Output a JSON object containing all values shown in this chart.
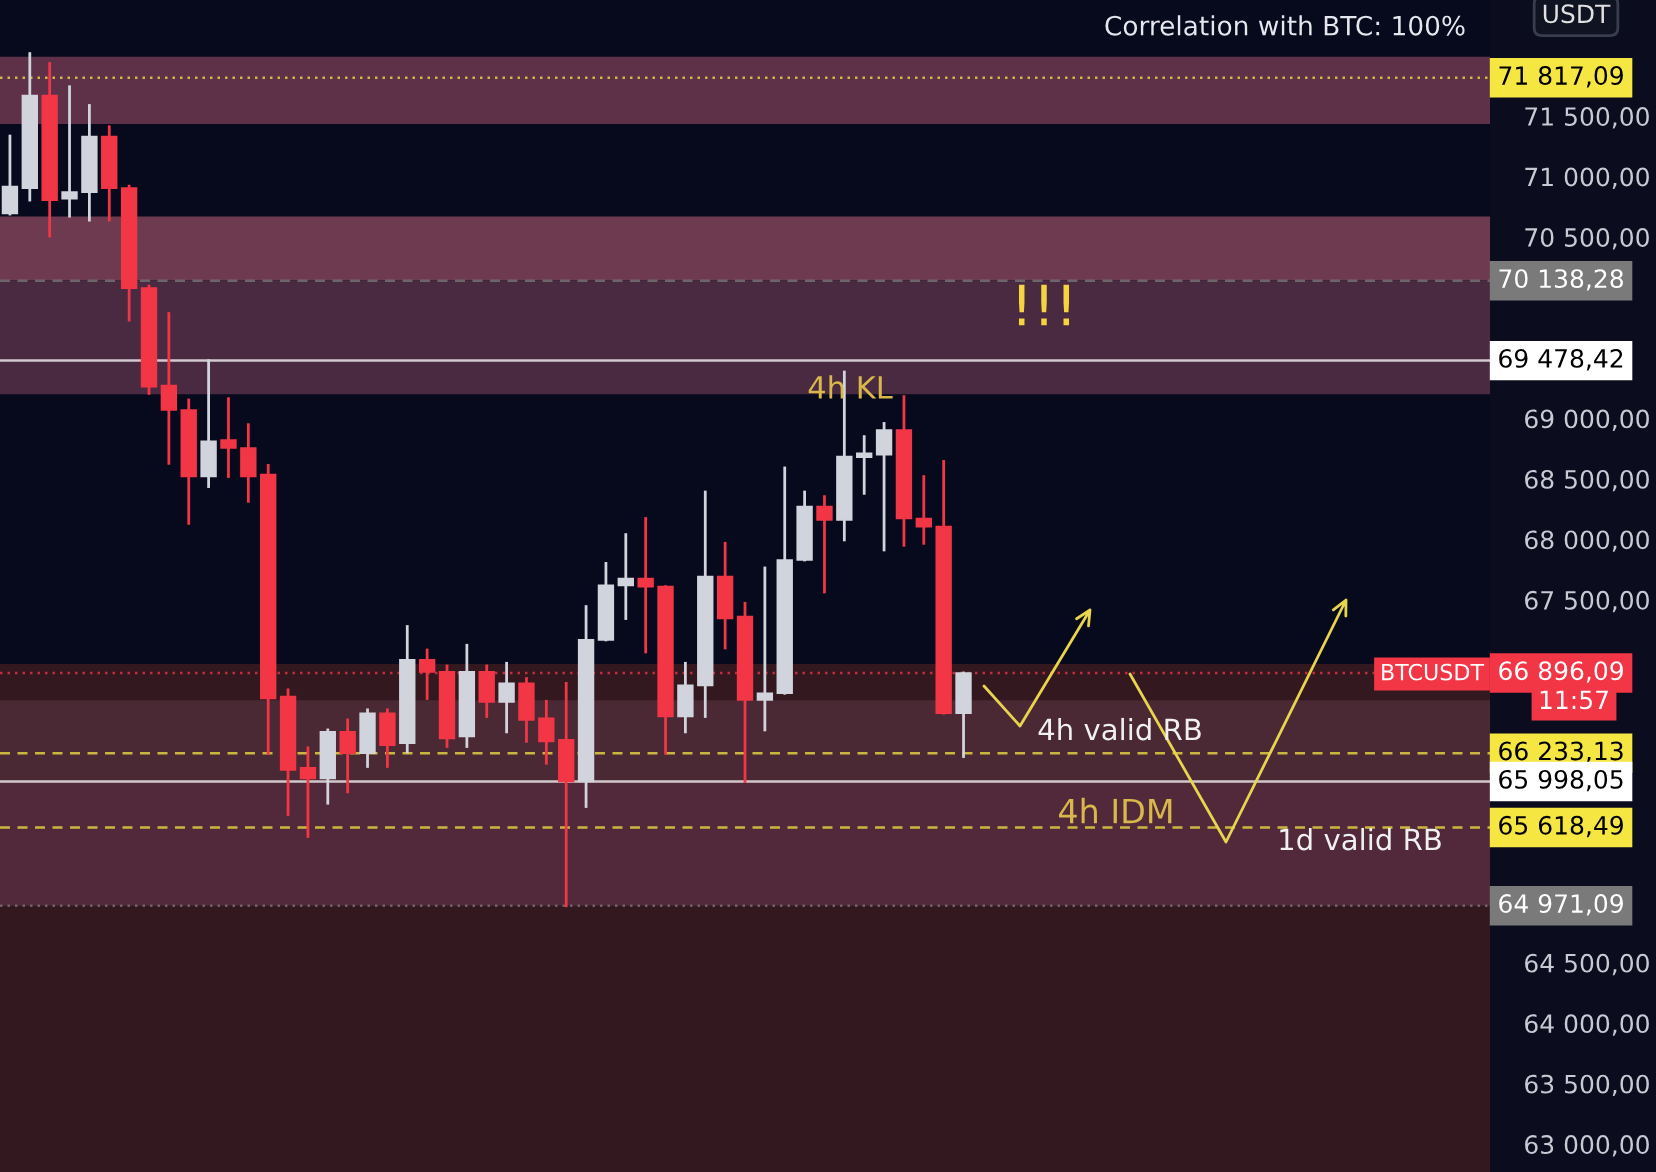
{
  "chart_data": {
    "type": "candlestick",
    "ylabel": "USDT",
    "tick_labels": "y",
    "categories": [
      null,
      null,
      null,
      null,
      null,
      null,
      null,
      null,
      null,
      null,
      null,
      null,
      null,
      null,
      null,
      null,
      null,
      null,
      null,
      null,
      null,
      null,
      null,
      null,
      null,
      null,
      null,
      null,
      null,
      null,
      null,
      null,
      null,
      null,
      null,
      null,
      null,
      null,
      null,
      null,
      null,
      null,
      null,
      null,
      null,
      null,
      null,
      null,
      null,
      null,
      null,
      null,
      null,
      null,
      null,
      null,
      null,
      null,
      null,
      null,
      null,
      null,
      null,
      null,
      null,
      null,
      null,
      null,
      null,
      null,
      null,
      null,
      null,
      null,
      null
    ],
    "ohlc": [
      [
        70695,
        71335,
        70690,
        70917
      ],
      [
        70905,
        72017,
        70806,
        71670
      ],
      [
        71670,
        71935,
        70508,
        70806
      ],
      [
        70817,
        71743,
        70673,
        70872
      ],
      [
        70872,
        71588,
        70640,
        71330
      ],
      [
        71330,
        71412,
        70640,
        70905
      ],
      [
        70905,
        70921,
        69814,
        70078
      ],
      [
        70078,
        70095,
        69207,
        69263
      ],
      [
        69273,
        69868,
        68629,
        69070
      ],
      [
        69070,
        69153,
        68133,
        68520
      ],
      [
        68520,
        69478,
        68437,
        68811
      ],
      [
        68822,
        69164,
        68520,
        68756
      ],
      [
        68756,
        68949,
        68315,
        68520
      ],
      [
        68536,
        68612,
        66232,
        66685
      ],
      [
        66701,
        66756,
        65726,
        66095
      ],
      [
        66111,
        66277,
        65544,
        66024
      ],
      [
        66024,
        66425,
        65819,
        66409
      ],
      [
        66409,
        66508,
        65913,
        66232
      ],
      [
        66232,
        66591,
        66123,
        66563
      ],
      [
        66563,
        66591,
        66123,
        66298
      ],
      [
        66315,
        67280,
        66243,
        67004
      ],
      [
        67004,
        67086,
        66685,
        66905
      ],
      [
        66905,
        66954,
        66288,
        66354
      ],
      [
        66371,
        67125,
        66288,
        66905
      ],
      [
        66905,
        66954,
        66536,
        66657
      ],
      [
        66657,
        66976,
        66409,
        66810
      ],
      [
        66810,
        66850,
        66331,
        66508
      ],
      [
        66520,
        66662,
        66149,
        66331
      ],
      [
        66343,
        66810,
        64971,
        66000
      ],
      [
        66000,
        67445,
        65792,
        67169
      ],
      [
        67169,
        67802,
        67169,
        67620
      ],
      [
        67620,
        68040,
        67346,
        67677
      ],
      [
        67677,
        68173,
        67070,
        67610
      ],
      [
        67610,
        67610,
        66232,
        66536
      ],
      [
        66536,
        66976,
        66409,
        66794
      ],
      [
        66794,
        68392,
        66536,
        67693
      ],
      [
        67693,
        67968,
        67103,
        67346
      ],
      [
        67363,
        67472,
        65998,
        66673
      ],
      [
        66673,
        67764,
        66425,
        66728
      ],
      [
        66728,
        68591,
        66728,
        67830
      ],
      [
        67830,
        68392,
        67830,
        68272
      ],
      [
        68272,
        68354,
        67566,
        68161
      ],
      [
        68161,
        69384,
        67996,
        68685
      ],
      [
        68680,
        68850,
        68381,
        68711
      ],
      [
        68701,
        68959,
        67913,
        68905
      ],
      [
        68905,
        69181,
        67951,
        68173
      ],
      [
        68173,
        68520,
        67968,
        68106
      ],
      [
        68106,
        68645,
        66563,
        66563
      ],
      [
        66563,
        66896,
        66205,
        66896
      ],
      null,
      null,
      null,
      null,
      null,
      null,
      null,
      null,
      null,
      null,
      null,
      null,
      null,
      null,
      null,
      null,
      null,
      null,
      null,
      null,
      null,
      null,
      null,
      null,
      null,
      null
    ],
    "colors": [
      "#d1d4dc",
      "#d1d4dc",
      "#f23645",
      "#d1d4dc",
      "#d1d4dc",
      "#f23645",
      "#f23645",
      "#f23645",
      "#f23645",
      "#f23645",
      "#d1d4dc",
      "#f23645",
      "#f23645",
      "#f23645",
      "#f23645",
      "#f23645",
      "#d1d4dc",
      "#f23645",
      "#d1d4dc",
      "#f23645",
      "#d1d4dc",
      "#f23645",
      "#f23645",
      "#d1d4dc",
      "#f23645",
      "#d1d4dc",
      "#f23645",
      "#f23645",
      "#f23645",
      "#d1d4dc",
      "#d1d4dc",
      "#d1d4dc",
      "#f23645",
      "#f23645",
      "#d1d4dc",
      "#d1d4dc",
      "#f23645",
      "#f23645",
      "#d1d4dc",
      "#d1d4dc",
      "#d1d4dc",
      "#f23645",
      "#d1d4dc",
      "#d1d4dc",
      "#d1d4dc",
      "#f23645",
      "#f23645",
      "#f23645",
      "#d1d4dc",
      null,
      null,
      null,
      null,
      null,
      null,
      null,
      null,
      null,
      null,
      null,
      null,
      null,
      null,
      null,
      null,
      null,
      null,
      null,
      null,
      null,
      null,
      null,
      null,
      null,
      null
    ],
    "ylim": [
      62770,
      72460
    ],
    "yticks": [
      {
        "value": 63000,
        "label": "63 000,00"
      },
      {
        "value": 63500,
        "label": "63 500,00"
      },
      {
        "value": 64000,
        "label": "64 000,00"
      },
      {
        "value": 64500,
        "label": "64 500,00"
      },
      {
        "value": 67500,
        "label": "67 500,00"
      },
      {
        "value": 68000,
        "label": "68 000,00"
      },
      {
        "value": 68500,
        "label": "68 500,00"
      },
      {
        "value": 69000,
        "label": "69 000,00"
      },
      {
        "value": 70500,
        "label": "70 500,00"
      },
      {
        "value": 71000,
        "label": "71 000,00"
      },
      {
        "value": 71500,
        "label": "71 500,00"
      }
    ],
    "bands": [
      {
        "axis": "y",
        "from": 71435,
        "to": 71990,
        "color": "#5e3148"
      },
      {
        "axis": "y",
        "from": 70140,
        "to": 70670,
        "color": "#6e3a50"
      },
      {
        "axis": "y",
        "from": 69200,
        "to": 70140,
        "color": "#4a2a40"
      },
      {
        "axis": "y",
        "from": 62770,
        "to": 66970,
        "color": "#33191f"
      },
      {
        "axis": "y",
        "from": 65998,
        "to": 66670,
        "color": "#4a2834"
      },
      {
        "axis": "y",
        "from": 64971,
        "to": 65998,
        "color": "#51293a"
      }
    ],
    "ref_lines": [
      {
        "axis": "y",
        "value": 71817.09,
        "label": "71 817,09",
        "color": "#f5e642",
        "line_style": "dotted"
      },
      {
        "axis": "y",
        "value": 70138.28,
        "label": "70 138,28",
        "color": "#7a7a7a",
        "line_style": "dashed"
      },
      {
        "axis": "y",
        "value": 69478.42,
        "label": "69 478,42",
        "color": "#ffffff",
        "line_style": "solid"
      },
      {
        "axis": "y",
        "value": 66896.09,
        "label": "66 896,09",
        "color": "#f23645",
        "line_style": "dotted"
      },
      {
        "axis": "y",
        "value": 66233.13,
        "label": "66 233,13",
        "color": "#f5e642",
        "line_style": "dashed"
      },
      {
        "axis": "y",
        "value": 65998.05,
        "label": "65 998,05",
        "color": "#ffffff",
        "line_style": "solid"
      },
      {
        "axis": "y",
        "value": 65618.49,
        "label": "65 618,49",
        "color": "#f5e642",
        "line_style": "dashed"
      },
      {
        "axis": "y",
        "value": 64971.09,
        "label": "64 971,09",
        "color": "#7a7a7a",
        "line_style": "dotted"
      }
    ],
    "annotations": [
      "Correlation with BTC: 100%",
      "!!!",
      "4h KL",
      "4h valid RB",
      "4h IDM",
      "1d valid RB",
      "11:57",
      "BTCUSDT"
    ]
  }
}
